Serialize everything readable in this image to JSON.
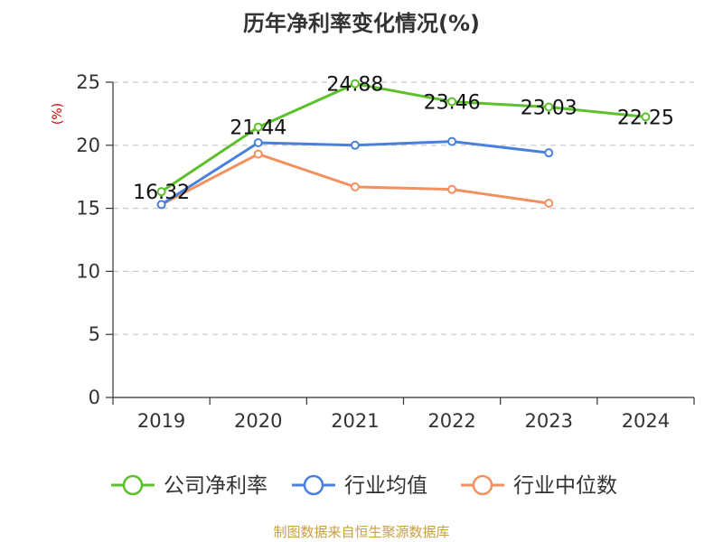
{
  "chart_data": {
    "type": "line",
    "title": "历年净利率变化情况(%)",
    "ylabel": "(%)",
    "xlabel": "",
    "categories": [
      "2019",
      "2020",
      "2021",
      "2022",
      "2023",
      "2024"
    ],
    "ylim": [
      0,
      25
    ],
    "yticks": [
      0,
      5,
      10,
      15,
      20,
      25
    ],
    "grid": true,
    "legend_position": "bottom",
    "series": [
      {
        "name": "公司净利率",
        "color": "#5cc02b",
        "values": [
          16.32,
          21.44,
          24.88,
          23.46,
          23.03,
          22.25
        ],
        "labels": [
          "16.32",
          "21.44",
          "24.88",
          "23.46",
          "23.03",
          "22.25"
        ]
      },
      {
        "name": "行业均值",
        "color": "#4a80dd",
        "values": [
          15.3,
          20.2,
          20.0,
          20.3,
          19.4,
          null
        ]
      },
      {
        "name": "行业中位数",
        "color": "#f39060",
        "values": [
          15.3,
          19.3,
          16.7,
          16.5,
          15.4,
          null
        ]
      }
    ]
  },
  "footer": {
    "source": "制图数据来自恒生聚源数据库"
  }
}
